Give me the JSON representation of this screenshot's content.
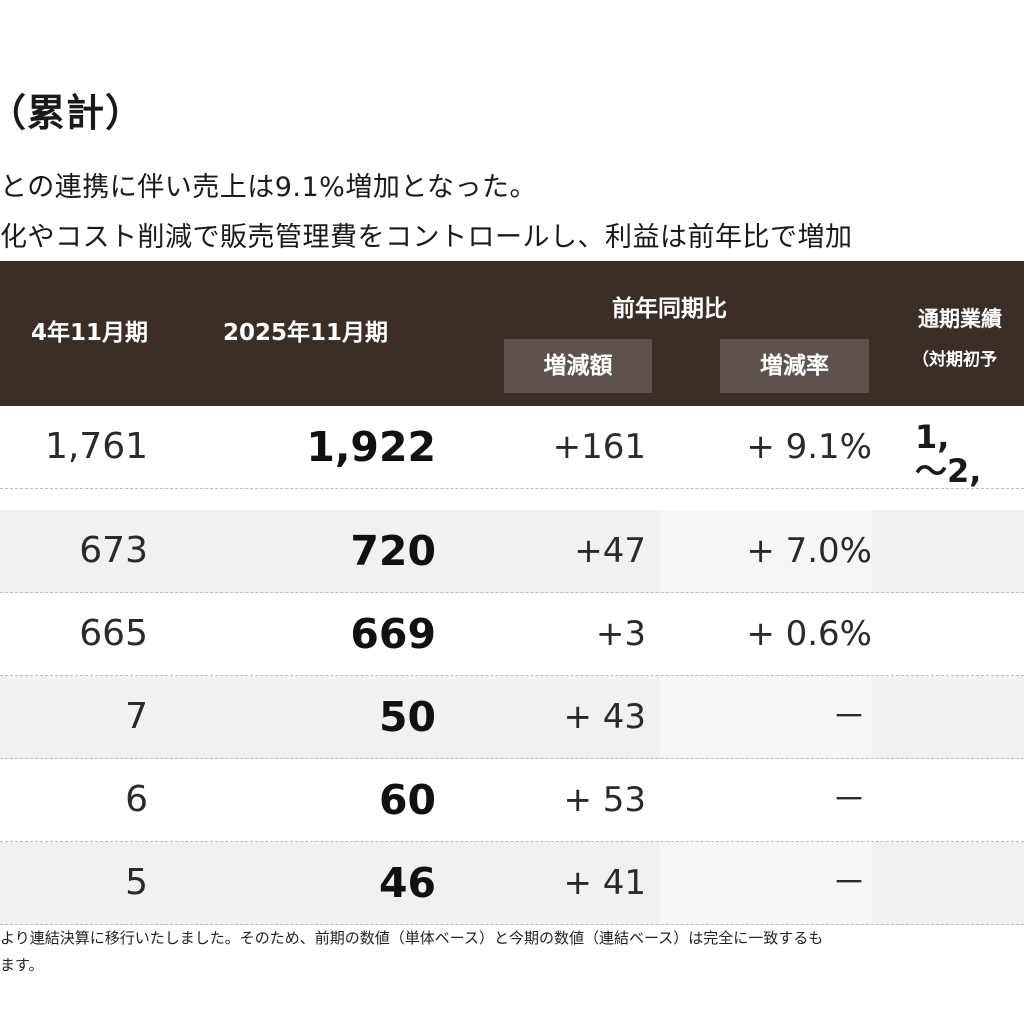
{
  "heading": "（累計）",
  "bullets": [
    "との連携に伴い売上は9.1%増加となった。",
    "化やコスト削減で販売管理費をコントロールし、利益は前年比で増加"
  ],
  "table": {
    "headers": {
      "prev_period": "4年11月期",
      "curr_period": "2025年11月期",
      "yoy": "前年同期比",
      "yoy_amount": "増減額",
      "yoy_rate": "増減率",
      "full_year": "通期業績",
      "full_year_sub": "（対期初予"
    },
    "rows": [
      {
        "prev": "1,761",
        "curr": "1,922",
        "amount": "+161",
        "rate": "+ 9.1%",
        "fy": "1,\n～2,"
      },
      {
        "prev": "673",
        "curr": "720",
        "amount": "+47",
        "rate": "+ 7.0%",
        "fy": ""
      },
      {
        "prev": "665",
        "curr": "669",
        "amount": "+3",
        "rate": "+ 0.6%",
        "fy": ""
      },
      {
        "prev": "7",
        "curr": "50",
        "amount": "+ 43",
        "rate": "－",
        "fy": ""
      },
      {
        "prev": "6",
        "curr": "60",
        "amount": "+ 53",
        "rate": "－",
        "fy": ""
      },
      {
        "prev": "5",
        "curr": "46",
        "amount": "+ 41",
        "rate": "－",
        "fy": ""
      }
    ]
  },
  "notes": [
    "より連結決算に移行いたしました。そのため、前期の数値（単体ベース）と今期の数値（連結ベース）は完全に一致するも",
    "ます。"
  ],
  "colors": {
    "header_bg": "#3a2e27",
    "chip_bg": "#5e534c",
    "row_shade": "#f2f1f0"
  }
}
